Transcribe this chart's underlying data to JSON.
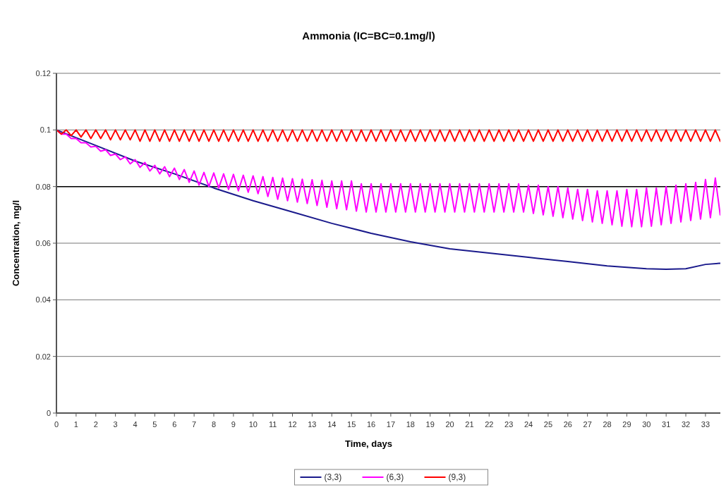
{
  "chart_data": {
    "type": "line",
    "title": "Ammonia (IC=BC=0.1mg/l)",
    "xlabel": "Time, days",
    "ylabel": "Concentration, mg/l",
    "xlim": [
      0,
      33.9
    ],
    "xticks": [
      0,
      1,
      2,
      3,
      4,
      5,
      6,
      7,
      8,
      9,
      10,
      11,
      12,
      13,
      14,
      15,
      16,
      17,
      18,
      19,
      20,
      21,
      22,
      23,
      24,
      25,
      26,
      27,
      28,
      29,
      30,
      31,
      32,
      33
    ],
    "ylim": [
      0,
      0.12
    ],
    "yticks": [
      0,
      0.02,
      0.04,
      0.06,
      0.08,
      0.1,
      0.12
    ],
    "grid": "y",
    "legend": "bottom",
    "ref_lines": [
      {
        "axis": "y",
        "value": 0.08,
        "color": "#000000"
      }
    ],
    "x": [
      0,
      0.25,
      0.5,
      0.75,
      1,
      1.25,
      1.5,
      1.75,
      2,
      2.25,
      2.5,
      2.75,
      3,
      3.25,
      3.5,
      3.75,
      4,
      4.25,
      4.5,
      4.75,
      5,
      5.25,
      5.5,
      5.75,
      6,
      6.25,
      6.5,
      6.75,
      7,
      7.25,
      7.5,
      7.75,
      8,
      8.25,
      8.5,
      8.75,
      9,
      9.25,
      9.5,
      9.75,
      10,
      10.25,
      10.5,
      10.75,
      11,
      11.25,
      11.5,
      11.75,
      12,
      12.25,
      12.5,
      12.75,
      13,
      13.25,
      13.5,
      13.75,
      14,
      14.25,
      14.5,
      14.75,
      15,
      15.25,
      15.5,
      15.75,
      16,
      16.25,
      16.5,
      16.75,
      17,
      17.25,
      17.5,
      17.75,
      18,
      18.25,
      18.5,
      18.75,
      19,
      19.25,
      19.5,
      19.75,
      20,
      20.25,
      20.5,
      20.75,
      21,
      21.25,
      21.5,
      21.75,
      22,
      22.25,
      22.5,
      22.75,
      23,
      23.25,
      23.5,
      23.75,
      24,
      24.25,
      24.5,
      24.75,
      25,
      25.25,
      25.5,
      25.75,
      26,
      26.25,
      26.5,
      26.75,
      27,
      27.25,
      27.5,
      27.75,
      28,
      28.25,
      28.5,
      28.75,
      29,
      29.25,
      29.5,
      29.75,
      30,
      30.25,
      30.5,
      30.75,
      31,
      31.25,
      31.5,
      31.75,
      32,
      32.25,
      32.5,
      32.75,
      33,
      33.25,
      33.5,
      33.75
    ],
    "series": [
      {
        "name": "(3,3)",
        "color": "#1a1a8c",
        "x": [
          0,
          2,
          4,
          6,
          8,
          10,
          12,
          14,
          16,
          18,
          20,
          22,
          24,
          26,
          28,
          30,
          31,
          32,
          33,
          33.9
        ],
        "values": [
          0.1,
          0.0945,
          0.089,
          0.0845,
          0.0795,
          0.075,
          0.071,
          0.067,
          0.0635,
          0.0605,
          0.058,
          0.0565,
          0.055,
          0.0535,
          0.052,
          0.051,
          0.0508,
          0.051,
          0.0525,
          0.053
        ]
      },
      {
        "name": "(6,3)",
        "color": "#ff00ff",
        "values": [
          0.1,
          0.0985,
          0.0985,
          0.097,
          0.097,
          0.0955,
          0.0955,
          0.094,
          0.0942,
          0.0925,
          0.093,
          0.091,
          0.0915,
          0.0895,
          0.0905,
          0.088,
          0.0895,
          0.0868,
          0.0885,
          0.0855,
          0.0875,
          0.0845,
          0.087,
          0.0835,
          0.0865,
          0.0825,
          0.086,
          0.0815,
          0.0855,
          0.0805,
          0.085,
          0.08,
          0.0848,
          0.0795,
          0.0845,
          0.079,
          0.0843,
          0.0785,
          0.084,
          0.078,
          0.0838,
          0.0775,
          0.0835,
          0.0765,
          0.0832,
          0.0755,
          0.083,
          0.075,
          0.0828,
          0.0745,
          0.0826,
          0.074,
          0.0824,
          0.0733,
          0.0822,
          0.0727,
          0.082,
          0.0722,
          0.082,
          0.0718,
          0.082,
          0.0713,
          0.081,
          0.071,
          0.081,
          0.071,
          0.081,
          0.071,
          0.081,
          0.071,
          0.081,
          0.071,
          0.081,
          0.071,
          0.081,
          0.071,
          0.081,
          0.071,
          0.081,
          0.071,
          0.081,
          0.071,
          0.081,
          0.071,
          0.081,
          0.071,
          0.081,
          0.071,
          0.081,
          0.071,
          0.081,
          0.071,
          0.081,
          0.071,
          0.081,
          0.071,
          0.0805,
          0.0705,
          0.0805,
          0.07,
          0.08,
          0.0695,
          0.08,
          0.069,
          0.0795,
          0.0685,
          0.079,
          0.068,
          0.079,
          0.0675,
          0.0785,
          0.067,
          0.0785,
          0.0665,
          0.0785,
          0.066,
          0.079,
          0.0658,
          0.079,
          0.0658,
          0.0795,
          0.066,
          0.0795,
          0.0665,
          0.08,
          0.067,
          0.0805,
          0.0675,
          0.081,
          0.068,
          0.0815,
          0.0685,
          0.0825,
          0.069,
          0.083,
          0.07
        ]
      },
      {
        "name": "(9,3)",
        "color": "#ff0000",
        "values": [
          0.1,
          0.0985,
          0.1,
          0.098,
          0.1,
          0.0975,
          0.1,
          0.097,
          0.1,
          0.097,
          0.1,
          0.0965,
          0.1,
          0.0965,
          0.1,
          0.0965,
          0.1,
          0.096,
          0.1,
          0.096,
          0.1,
          0.096,
          0.1,
          0.096,
          0.1,
          0.096,
          0.1,
          0.096,
          0.1,
          0.096,
          0.1,
          0.096,
          0.1,
          0.096,
          0.1,
          0.096,
          0.1,
          0.096,
          0.1,
          0.096,
          0.1,
          0.096,
          0.1,
          0.096,
          0.1,
          0.096,
          0.1,
          0.096,
          0.1,
          0.096,
          0.1,
          0.096,
          0.1,
          0.096,
          0.1,
          0.096,
          0.1,
          0.096,
          0.1,
          0.096,
          0.1,
          0.096,
          0.1,
          0.096,
          0.1,
          0.096,
          0.1,
          0.096,
          0.1,
          0.096,
          0.1,
          0.096,
          0.1,
          0.096,
          0.1,
          0.096,
          0.1,
          0.096,
          0.1,
          0.096,
          0.1,
          0.096,
          0.1,
          0.096,
          0.1,
          0.096,
          0.1,
          0.096,
          0.1,
          0.096,
          0.1,
          0.096,
          0.1,
          0.096,
          0.1,
          0.096,
          0.1,
          0.096,
          0.1,
          0.096,
          0.1,
          0.096,
          0.1,
          0.096,
          0.1,
          0.096,
          0.1,
          0.096,
          0.1,
          0.096,
          0.1,
          0.096,
          0.1,
          0.096,
          0.1,
          0.096,
          0.1,
          0.096,
          0.1,
          0.096,
          0.1,
          0.096,
          0.1,
          0.096,
          0.1,
          0.096,
          0.1,
          0.096,
          0.1,
          0.096,
          0.1,
          0.096,
          0.1,
          0.096,
          0.1,
          0.096
        ]
      }
    ]
  }
}
